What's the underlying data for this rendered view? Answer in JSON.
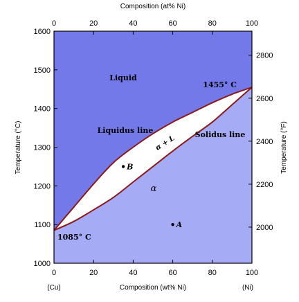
{
  "chart_data": {
    "type": "area",
    "xlabel_top": "Composition (at% Ni)",
    "xlabel_bottom": "Composition (wt% Ni)",
    "ylabel_left": "Temperature (°C)",
    "ylabel_right": "Temperature (°F)",
    "x_end_labels": {
      "left": "(Cu)",
      "right": "(Ni)"
    },
    "xlim": [
      0,
      100
    ],
    "ylim": [
      1000,
      1600
    ],
    "x_ticks_bottom": [
      "0",
      "20",
      "40",
      "60",
      "80",
      "100"
    ],
    "x_ticks_top": [
      "0",
      "20",
      "40",
      "60",
      "80",
      "100"
    ],
    "y_ticks_left": [
      "1000",
      "1100",
      "1200",
      "1300",
      "1400",
      "1500",
      "1600"
    ],
    "y_ticks_right": [
      "2000",
      "2200",
      "2400",
      "2600",
      "2800"
    ],
    "y_ticks_right_values_C": [
      1093.3,
      1204.4,
      1315.6,
      1426.7,
      1537.8
    ],
    "liquidus": {
      "name": "Liquidus line",
      "x": [
        0,
        10,
        20,
        30,
        40,
        50,
        60,
        70,
        80,
        90,
        100
      ],
      "y": [
        1085,
        1145,
        1205,
        1260,
        1300,
        1335,
        1365,
        1390,
        1415,
        1437,
        1455
      ]
    },
    "solidus": {
      "name": "Solidus line",
      "x": [
        0,
        10,
        20,
        30,
        40,
        50,
        60,
        70,
        80,
        90,
        100
      ],
      "y": [
        1085,
        1108,
        1138,
        1170,
        1210,
        1250,
        1290,
        1328,
        1365,
        1410,
        1455
      ]
    },
    "regions": {
      "liquid": "Liquid",
      "alpha": "α",
      "two_phase": "α + L"
    },
    "annotations": {
      "liquidus_label": "Liquidus line",
      "solidus_label": "Solidus line",
      "ni_melting": "1455° C",
      "cu_melting": "1085° C"
    },
    "points": [
      {
        "label": "A",
        "x": 60,
        "y": 1100
      },
      {
        "label": "B",
        "x": 35,
        "y": 1250
      }
    ],
    "colors": {
      "liquid": "#7379e9",
      "alpha": "#a6abf5",
      "two_phase": "#ffffff",
      "curve": "#8b1a1a",
      "point": "#000000"
    }
  }
}
